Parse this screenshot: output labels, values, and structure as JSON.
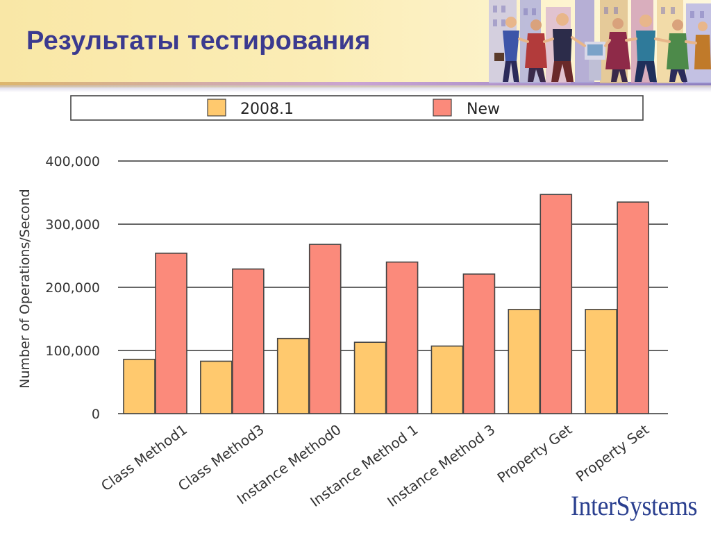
{
  "slide": {
    "title": "Результаты тестирования",
    "brand": "InterSystems"
  },
  "colors": {
    "title": "#3b3a8f",
    "series_2008_1": "#ffc96e",
    "series_new": "#fb8a7b",
    "gridline": "#333333",
    "axis_text": "#333333",
    "brand": "#2a3f8f"
  },
  "chart_data": {
    "type": "bar",
    "title": "",
    "xlabel": "",
    "ylabel": "Number of Operations/Second",
    "ylim": [
      0,
      400000
    ],
    "yticks": [
      0,
      100000,
      200000,
      300000,
      400000
    ],
    "ytick_labels": [
      "0",
      "100,000",
      "200,000",
      "300,000",
      "400,000"
    ],
    "grid": true,
    "legend_position": "top",
    "categories": [
      "Class Method1",
      "Class Method3",
      "Instance Method0",
      "Instance Method 1",
      "Instance Method 3",
      "Property Get",
      "Property Set"
    ],
    "series": [
      {
        "name": "2008.1",
        "color": "#ffc96e",
        "values": [
          86000,
          83000,
          119000,
          113000,
          107000,
          165000,
          165000
        ]
      },
      {
        "name": "New",
        "color": "#fb8a7b",
        "values": [
          254000,
          229000,
          268000,
          240000,
          221000,
          347000,
          335000
        ]
      }
    ]
  }
}
